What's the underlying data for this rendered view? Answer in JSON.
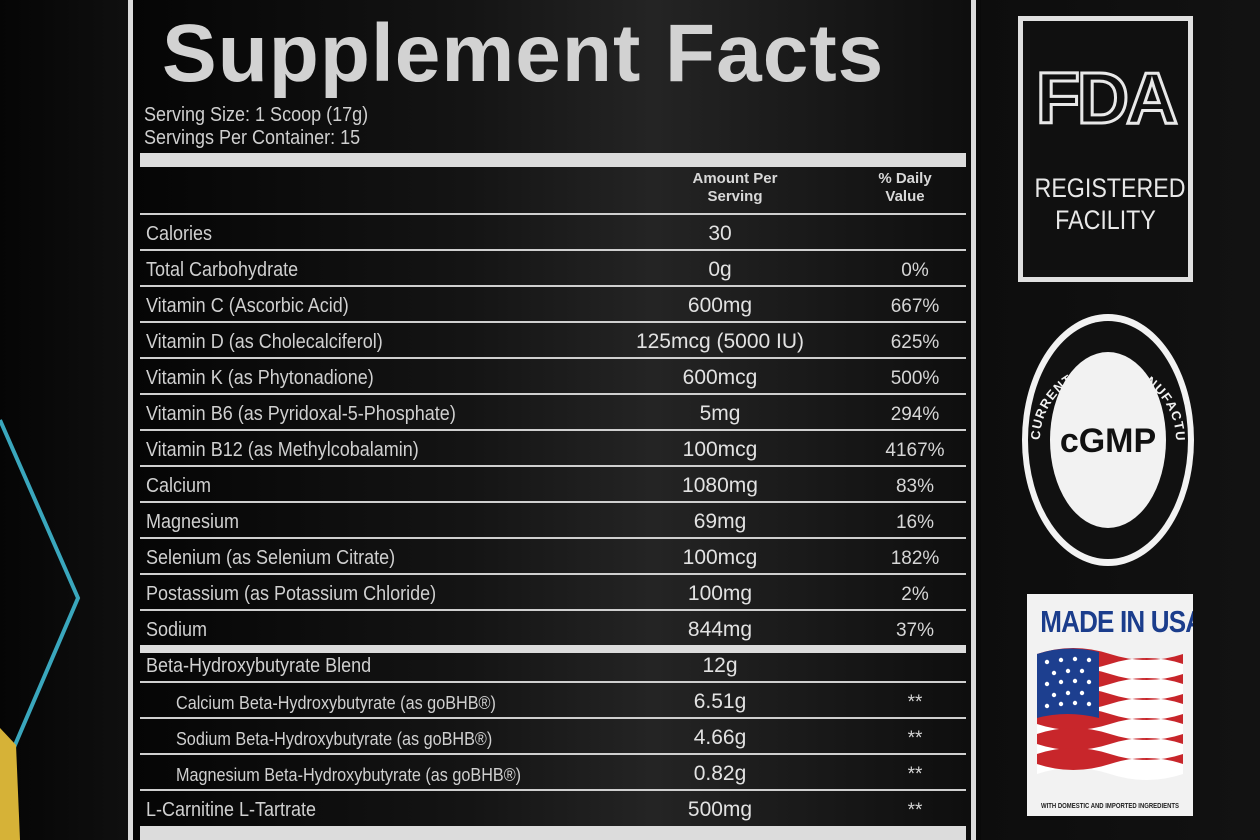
{
  "facts": {
    "title": "Supplement Facts",
    "serving_size": "Serving Size: 1 Scoop (17g)",
    "servings_per_container": "Servings Per Container: 15",
    "header_amount_line1": "Amount Per",
    "header_amount_line2": "Serving",
    "header_dv_line1": "% Daily",
    "header_dv_line2": "Value",
    "rows": [
      {
        "label": "Calories",
        "amount": "30",
        "dv": ""
      },
      {
        "label": "Total Carbohydrate",
        "amount": "0g",
        "dv": "0%"
      },
      {
        "label": "Vitamin C (Ascorbic Acid)",
        "amount": "600mg",
        "dv": "667%"
      },
      {
        "label": "Vitamin D (as Cholecalciferol)",
        "amount": "125mcg (5000 IU)",
        "dv": "625%"
      },
      {
        "label": "Vitamin K (as Phytonadione)",
        "amount": "600mcg",
        "dv": "500%"
      },
      {
        "label": "Vitamin B6 (as Pyridoxal-5-Phosphate)",
        "amount": "5mg",
        "dv": "294%"
      },
      {
        "label": "Vitamin B12 (as Methylcobalamin)",
        "amount": "100mcg",
        "dv": "4167%"
      },
      {
        "label": "Calcium",
        "amount": "1080mg",
        "dv": "83%"
      },
      {
        "label": "Magnesium",
        "amount": "69mg",
        "dv": "16%"
      },
      {
        "label": "Selenium (as Selenium Citrate)",
        "amount": "100mcg",
        "dv": "182%"
      },
      {
        "label": "Postassium (as Potassium Chloride)",
        "amount": "100mg",
        "dv": "2%"
      },
      {
        "label": "Sodium",
        "amount": "844mg",
        "dv": "37%"
      },
      {
        "label": "Beta-Hydroxybutyrate Blend",
        "amount": "12g",
        "dv": ""
      },
      {
        "label": "Calcium Beta-Hydroxybutyrate (as goBHB®)",
        "amount": "6.51g",
        "dv": "**"
      },
      {
        "label": "Sodium Beta-Hydroxybutyrate (as goBHB®)",
        "amount": "4.66g",
        "dv": "**"
      },
      {
        "label": "Magnesium Beta-Hydroxybutyrate (as goBHB®)",
        "amount": "0.82g",
        "dv": "**"
      },
      {
        "label": "L-Carnitine L-Tartrate",
        "amount": "500mg",
        "dv": "**"
      }
    ]
  },
  "badges": {
    "fda_letters": "FDA",
    "fda_line1": "REGISTERED",
    "fda_line2": "FACILITY",
    "cgmp_center": "cGMP",
    "cgmp_ring": "CURRENT GOOD MANUFACTURING PRACTICE",
    "usa_title": "MADE IN USA",
    "usa_small": "WITH DOMESTIC AND IMPORTED INGREDIENTS"
  }
}
